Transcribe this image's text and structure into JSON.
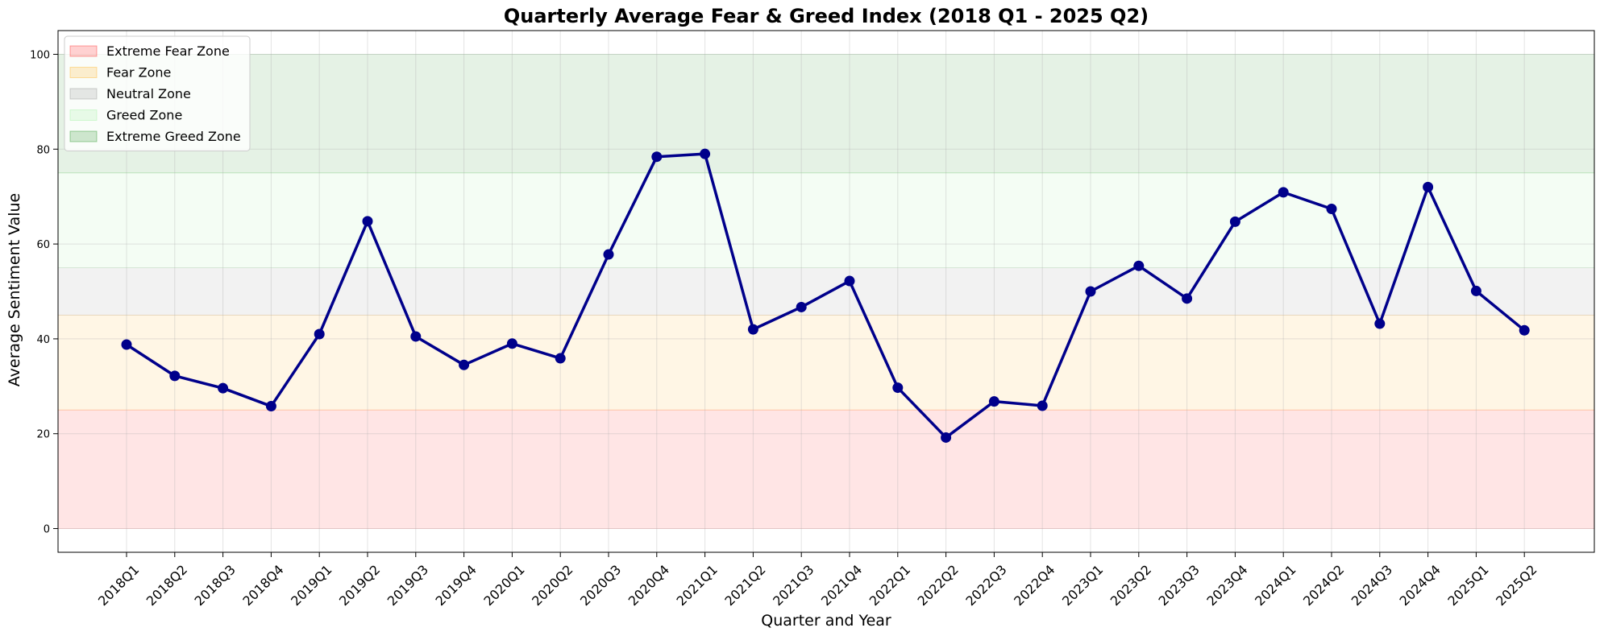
{
  "chart_data": {
    "type": "line",
    "title": "Quarterly Average Fear & Greed Index (2018 Q1 - 2025 Q2)",
    "xlabel": "Quarter and Year",
    "ylabel": "Average Sentiment Value",
    "ylim": [
      -5,
      105
    ],
    "yticks": [
      0,
      20,
      40,
      60,
      80,
      100
    ],
    "grid": true,
    "legend_position": "top-left",
    "categories": [
      "2018Q1",
      "2018Q2",
      "2018Q3",
      "2018Q4",
      "2019Q1",
      "2019Q2",
      "2019Q3",
      "2019Q4",
      "2020Q1",
      "2020Q2",
      "2020Q3",
      "2020Q4",
      "2021Q1",
      "2021Q2",
      "2021Q3",
      "2021Q4",
      "2022Q1",
      "2022Q2",
      "2022Q3",
      "2022Q4",
      "2023Q1",
      "2023Q2",
      "2023Q3",
      "2023Q4",
      "2024Q1",
      "2024Q2",
      "2024Q3",
      "2024Q4",
      "2025Q1",
      "2025Q2"
    ],
    "series": [
      {
        "color": "#00008b",
        "values": [
          38.8,
          32.2,
          29.6,
          25.8,
          41.0,
          64.8,
          40.5,
          34.5,
          39.0,
          35.9,
          57.8,
          78.4,
          79.0,
          42.0,
          46.7,
          52.2,
          29.7,
          19.2,
          26.8,
          25.9,
          50.0,
          55.4,
          48.5,
          64.7,
          70.9,
          67.4,
          43.2,
          72.0,
          50.1,
          41.8
        ]
      }
    ],
    "zones": [
      {
        "label": "Extreme Fear Zone",
        "from": 0,
        "to": 25,
        "color": "#ff0000",
        "opacity": 0.1
      },
      {
        "label": "Fear Zone",
        "from": 25,
        "to": 45,
        "color": "#ffa500",
        "opacity": 0.1
      },
      {
        "label": "Neutral Zone",
        "from": 45,
        "to": 55,
        "color": "#808080",
        "opacity": 0.1
      },
      {
        "label": "Greed Zone",
        "from": 55,
        "to": 75,
        "color": "#90ee90",
        "opacity": 0.1
      },
      {
        "label": "Extreme Greed Zone",
        "from": 75,
        "to": 100,
        "color": "#008000",
        "opacity": 0.1
      }
    ]
  }
}
